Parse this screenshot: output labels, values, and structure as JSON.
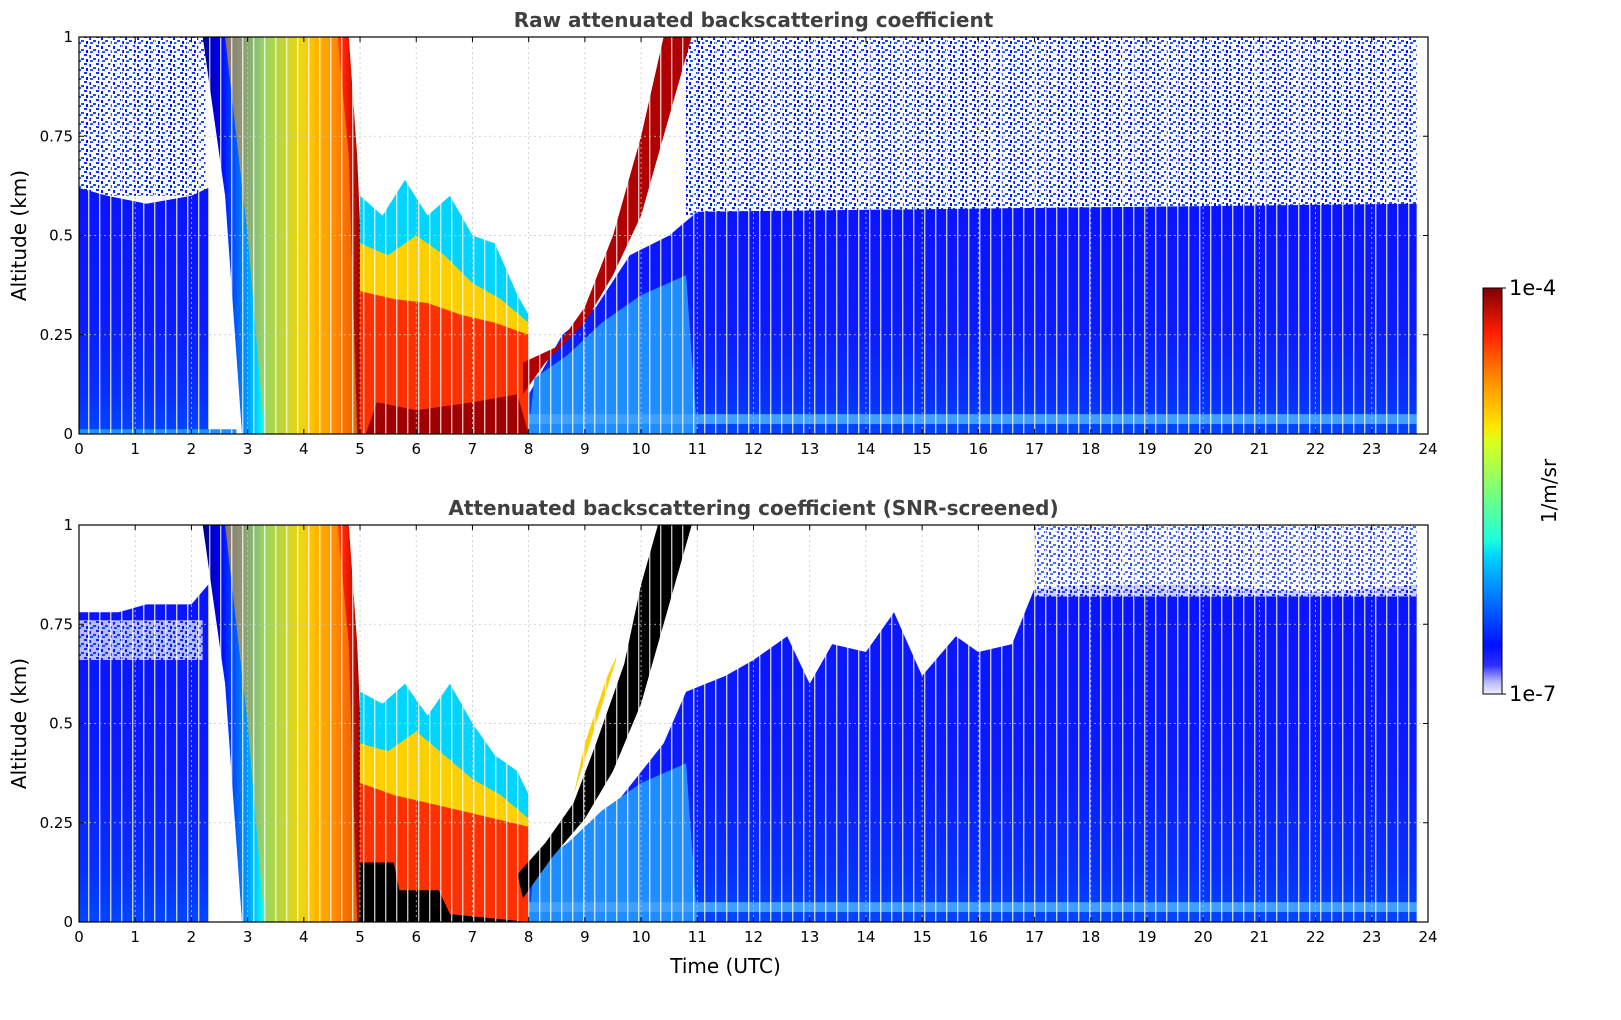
{
  "chart_data": [
    {
      "type": "heatmap",
      "title": "Raw attenuated backscattering coefficient",
      "ylabel": "Altitude (km)",
      "xlim": [
        0,
        24
      ],
      "ylim": [
        0,
        1
      ],
      "x_ticks": [
        "0",
        "1",
        "2",
        "3",
        "4",
        "5",
        "6",
        "7",
        "8",
        "9",
        "10",
        "11",
        "12",
        "13",
        "14",
        "15",
        "16",
        "17",
        "18",
        "19",
        "20",
        "21",
        "22",
        "23",
        "24"
      ],
      "y_ticks": [
        "0",
        "0.25",
        "0.5",
        "0.75",
        "1"
      ],
      "grid": true,
      "colormap": "jet",
      "color_scale": "log",
      "color_range": [
        "1e-7",
        "1e-4"
      ],
      "regions": [
        {
          "x": [
            0,
            2.2
          ],
          "y": [
            0,
            1
          ],
          "level": "low, noisy above 0.6 km"
        },
        {
          "x": [
            2.2,
            5
          ],
          "y": [
            0,
            1
          ],
          "level": "high (yellow-orange), fog layer"
        },
        {
          "x": [
            5,
            8
          ],
          "y": [
            0,
            0.35
          ],
          "level": "very high (red)"
        },
        {
          "x": [
            8,
            11
          ],
          "y": [
            0.25,
            1
          ],
          "level": "very high (dark red), rising layer"
        },
        {
          "x": [
            8,
            24
          ],
          "y": [
            0,
            0.6
          ],
          "level": "low (blue)"
        }
      ]
    },
    {
      "type": "heatmap",
      "title": "Attenuated backscattering coefficient (SNR-screened)",
      "ylabel": "Altitude (km)",
      "xlabel": "Time (UTC)",
      "xlim": [
        0,
        24
      ],
      "ylim": [
        0,
        1
      ],
      "x_ticks": [
        "0",
        "1",
        "2",
        "3",
        "4",
        "5",
        "6",
        "7",
        "8",
        "9",
        "10",
        "11",
        "12",
        "13",
        "14",
        "15",
        "16",
        "17",
        "18",
        "19",
        "20",
        "21",
        "22",
        "23",
        "24"
      ],
      "y_ticks": [
        "0",
        "0.25",
        "0.5",
        "0.75",
        "1"
      ],
      "grid": true,
      "colormap": "jet",
      "color_scale": "log",
      "color_range": [
        "1e-7",
        "1e-4"
      ],
      "regions": [
        {
          "x": [
            0,
            2.2
          ],
          "y": [
            0,
            0.75
          ],
          "level": "low (blue)"
        },
        {
          "x": [
            2.2,
            5
          ],
          "y": [
            0,
            1
          ],
          "level": "high (yellow-orange)"
        },
        {
          "x": [
            5,
            8
          ],
          "y": [
            0,
            0.4
          ],
          "level": "very high (red), saturated below 0.15 km"
        },
        {
          "x": [
            8,
            11
          ],
          "y": [
            0.2,
            1
          ],
          "level": "saturated (black), rising layer"
        },
        {
          "x": [
            8,
            17
          ],
          "y": [
            0,
            0.6
          ],
          "level": "low (blue)"
        },
        {
          "x": [
            17,
            24
          ],
          "y": [
            0,
            0.85
          ],
          "level": "low (blue)"
        }
      ]
    }
  ],
  "colorbar": {
    "label": "1/m/sr",
    "max_label": "1e-4",
    "min_label": "1e-7"
  }
}
